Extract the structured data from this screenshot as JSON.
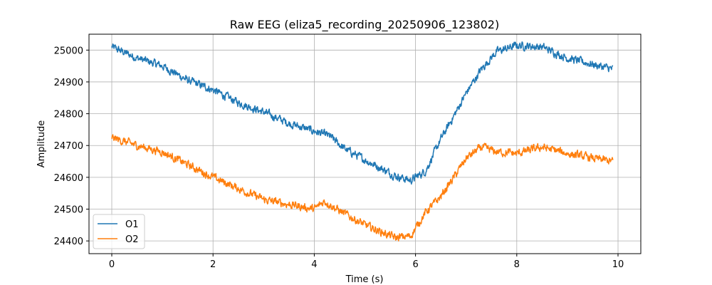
{
  "chart_data": {
    "type": "line",
    "title": "Raw EEG (eliza5_recording_20250906_123802)",
    "xlabel": "Time (s)",
    "ylabel": "Amplitude",
    "xlim": [
      -0.45,
      10.45
    ],
    "ylim": [
      24360,
      25050
    ],
    "x_ticks": [
      0,
      2,
      4,
      6,
      8,
      10
    ],
    "y_ticks": [
      24400,
      24500,
      24600,
      24700,
      24800,
      24900,
      25000
    ],
    "grid": true,
    "legend_position": "lower-left",
    "noise_amplitude": 22,
    "series": [
      {
        "name": "O1",
        "color": "#1f77b4",
        "x": [
          0,
          0.5,
          1.0,
          1.5,
          2.0,
          2.5,
          3.0,
          3.5,
          4.0,
          4.3,
          4.6,
          5.0,
          5.3,
          5.6,
          5.9,
          6.2,
          6.5,
          6.8,
          7.0,
          7.3,
          7.6,
          8.0,
          8.5,
          9.0,
          9.5,
          9.9
        ],
        "values": [
          25010,
          24975,
          24950,
          24905,
          24875,
          24835,
          24805,
          24770,
          24745,
          24730,
          24690,
          24655,
          24630,
          24605,
          24590,
          24620,
          24720,
          24805,
          24865,
          24940,
          24995,
          25015,
          25010,
          24975,
          24955,
          24940
        ]
      },
      {
        "name": "O2",
        "color": "#ff7f0e",
        "x": [
          0,
          0.5,
          1.0,
          1.5,
          2.0,
          2.5,
          3.0,
          3.5,
          4.0,
          4.2,
          4.5,
          5.0,
          5.3,
          5.6,
          5.9,
          6.2,
          6.5,
          6.8,
          7.0,
          7.3,
          7.6,
          8.0,
          8.5,
          9.0,
          9.5,
          9.9
        ],
        "values": [
          24725,
          24700,
          24680,
          24640,
          24600,
          24565,
          24530,
          24515,
          24500,
          24525,
          24495,
          24450,
          24430,
          24410,
          24415,
          24490,
          24540,
          24610,
          24660,
          24695,
          24680,
          24675,
          24695,
          24675,
          24660,
          24650
        ]
      }
    ]
  }
}
